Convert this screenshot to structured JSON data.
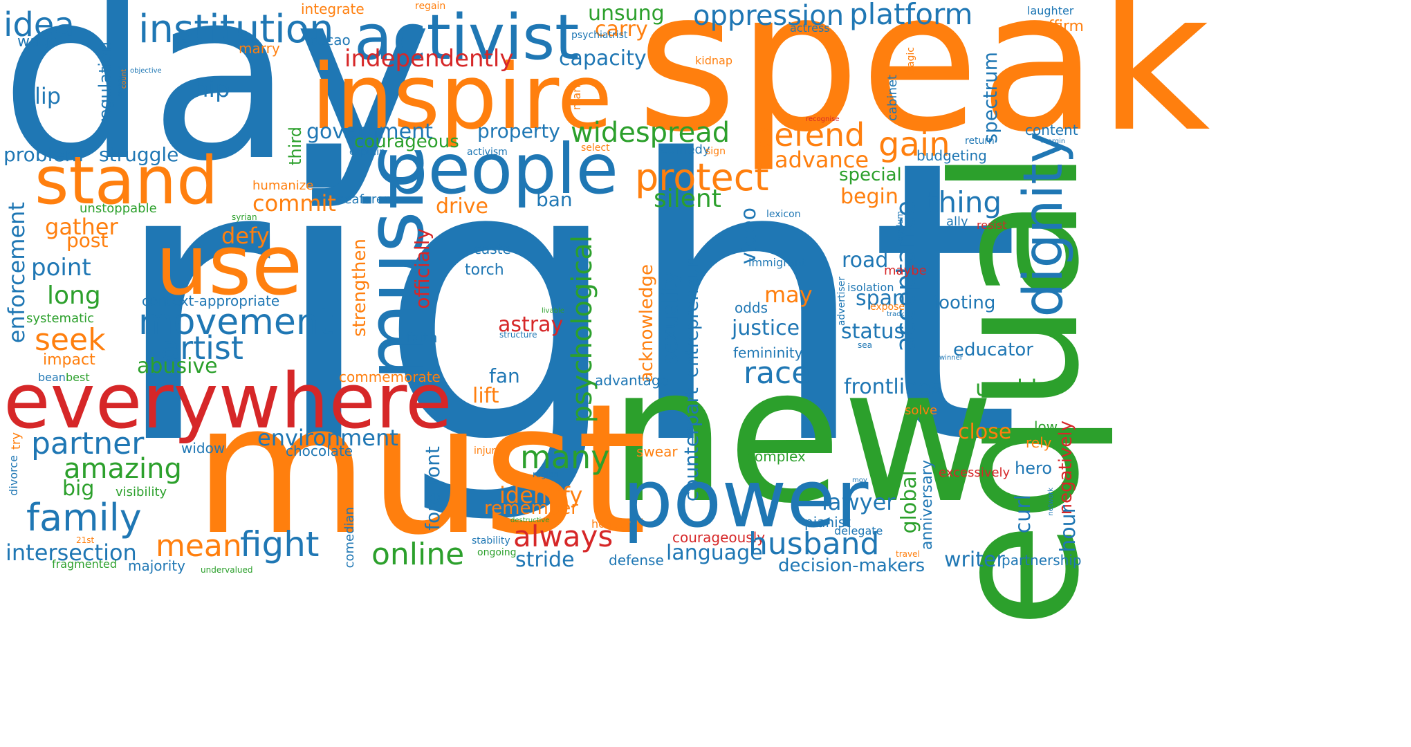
{
  "colors": {
    "blue": "#1f77b4",
    "orange": "#ff7f0e",
    "green": "#2ca02c",
    "red": "#d62728"
  },
  "words": {
    "day": "day",
    "speak": "speak",
    "right": "right",
    "new": "new",
    "equal": "equal",
    "must": "must",
    "inspire": "inspire",
    "activist": "activist",
    "people": "people",
    "music": "music",
    "everywhere": "everywhere",
    "use": "use",
    "stand": "stand",
    "power": "power",
    "dignity": "dignity",
    "institution": "institution",
    "oppression": "oppression",
    "platform": "platform",
    "idea": "idea",
    "wage": "wage",
    "integrate": "integrate",
    "regain": "regain",
    "unsung": "unsung",
    "carry": "carry",
    "psychiatrist": "psychiatrist",
    "actress": "actress",
    "laughter": "laughter",
    "reaffirm": "reaffirm",
    "cacao": "cacao",
    "marry": "marry",
    "independently": "independently",
    "capacity": "capacity",
    "kidnap": "kidnap",
    "tragic": "tragic",
    "spectrum": "spectrum",
    "regulation": "regulation",
    "objective": "objective",
    "count": "count",
    "lip": "lip",
    "hip": "hip",
    "mark": "mark",
    "cabinet": "cabinet",
    "recognise": "recognise",
    "government": "government",
    "property": "property",
    "widespread": "widespread",
    "defend": "defend",
    "gain": "gain",
    "content": "content",
    "courageous": "courageous",
    "third": "third",
    "captain": "captain",
    "activism": "activism",
    "select": "select",
    "comedy": "comedy",
    "sign": "sign",
    "return": "return",
    "margin": "margin",
    "budgeting": "budgeting",
    "problem": "problem",
    "struggle": "struggle",
    "advance": "advance",
    "protect": "protect",
    "special": "special",
    "humanize": "humanize",
    "commit": "commit",
    "seafarer": "seafarer",
    "ban": "ban",
    "drive": "drive",
    "silent": "silent",
    "begin": "begin",
    "thing": "thing",
    "unstoppable": "unstoppable",
    "syrian": "syrian",
    "lexicon": "lexicon",
    "asylum": "asylum",
    "ally": "ally",
    "resist": "resist",
    "gather": "gather",
    "enforcement": "enforcement",
    "post": "post",
    "defy": "defy",
    "video": "video",
    "acceptance": "acceptance",
    "caste": "caste",
    "immigrant": "immigrant",
    "road": "road",
    "maybe": "maybe",
    "point": "point",
    "torch": "torch",
    "strengthen": "strengthen",
    "officially": "officially",
    "psychological": "psychological",
    "acknowledge": "acknowledge",
    "sexuality": "sexuality",
    "entrepreneur": "entrepreneur",
    "advertiser": "advertiser",
    "isolation": "isolation",
    "long": "long",
    "context_appropriate": "context-appropriate",
    "livable": "livable",
    "may": "may",
    "span": "span",
    "expose": "expose",
    "track": "track",
    "footing": "footing",
    "systematic": "systematic",
    "movement": "movement",
    "odds": "odds",
    "justice": "justice",
    "status": "status",
    "seek": "seek",
    "faith": "faith",
    "structure": "structure",
    "astray": "astray",
    "sea": "sea",
    "artist": "artist",
    "femininity": "femininity",
    "educator": "educator",
    "winner": "winner",
    "impact": "impact",
    "abusive": "abusive",
    "commemorate": "commemorate",
    "bean": "bean",
    "best": "best",
    "fan": "fan",
    "advantage": "advantage",
    "race": "race",
    "frontlines": "frontlines",
    "unable": "unable",
    "lift": "lift",
    "solve": "solve",
    "close": "close",
    "try": "try",
    "divorce": "divorce",
    "partner": "partner",
    "environment": "environment",
    "global": "global",
    "anniversary": "anniversary",
    "low": "low",
    "rely": "rely",
    "widow": "widow",
    "chocolate": "chocolate",
    "many": "many",
    "injure": "injure",
    "swear": "swear",
    "complex": "complex",
    "negatively": "negatively",
    "forefront": "forefront",
    "counterpart": "counterpart",
    "amazing": "amazing",
    "excessively": "excessively",
    "hero": "hero",
    "region": "region",
    "mov": "mov",
    "big": "big",
    "visibility": "visibility",
    "identify": "identify",
    "lawyer": "lawyer",
    "curl": "curl",
    "hour": "hour",
    "network": "network",
    "family": "family",
    "remember": "remember",
    "destructive": "destructive",
    "pianist": "pianist",
    "comedian": "comedian",
    "honour": "honour",
    "delegate": "delegate",
    "always": "always",
    "21st": "21st",
    "mean": "mean",
    "fight": "fight",
    "courageously": "courageously",
    "stability": "stability",
    "intersection": "intersection",
    "husband": "husband",
    "online": "online",
    "ongoing": "ongoing",
    "language": "language",
    "travel": "travel",
    "writer": "writer",
    "stride": "stride",
    "defense": "defense",
    "partnership": "partnership",
    "fragmented": "fragmented",
    "majority": "majority",
    "undervalued": "undervalued",
    "decision_makers": "decision-makers"
  }
}
